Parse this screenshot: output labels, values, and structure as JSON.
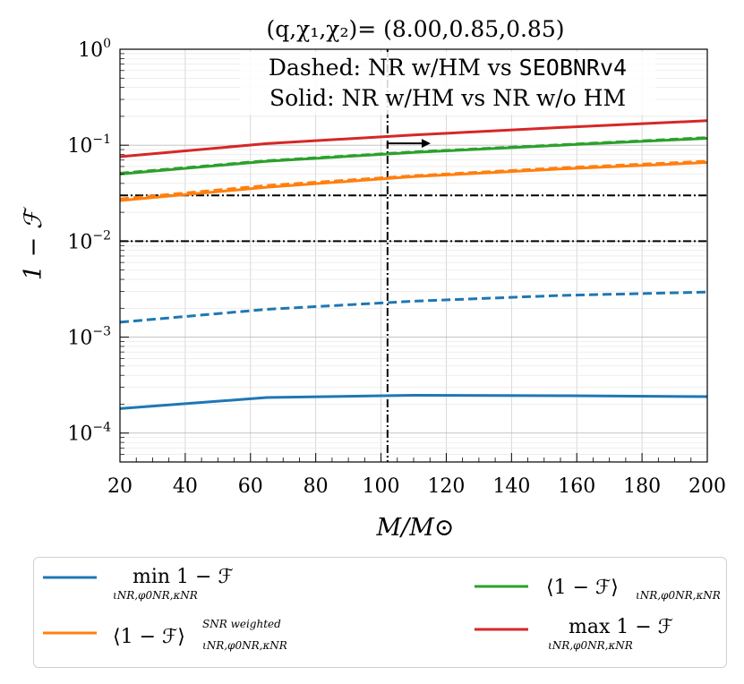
{
  "chart_data": {
    "type": "line",
    "title": "(q,χ₁,χ₂)= (8.00,0.85,0.85)",
    "annotations": {
      "line1_prefix": "Dashed: NR w/HM vs ",
      "line1_model": "SEOBNRv4",
      "line2": "Solid: NR w/HM vs NR w/o HM"
    },
    "xlabel": "M/M⊙",
    "ylabel": "1 − ℱ",
    "xlim": [
      20,
      200
    ],
    "ylim": [
      5e-05,
      1
    ],
    "yscale": "log",
    "grid": true,
    "x_ticks": [
      "20",
      "40",
      "60",
      "80",
      "100",
      "120",
      "140",
      "160",
      "180",
      "200"
    ],
    "y_ticks": [
      {
        "base": "10",
        "exp": "0",
        "value": 1
      },
      {
        "base": "10",
        "exp": "−1",
        "value": 0.1
      },
      {
        "base": "10",
        "exp": "−2",
        "value": 0.01
      },
      {
        "base": "10",
        "exp": "−3",
        "value": 0.001
      },
      {
        "base": "10",
        "exp": "−4",
        "value": 0.0001
      }
    ],
    "x": [
      20,
      65,
      110,
      155,
      200
    ],
    "series": [
      {
        "name": "min 1 − ℱ",
        "color": "#1f77b4",
        "style": "solid",
        "values": [
          0.00018,
          0.000235,
          0.000248,
          0.000245,
          0.00024
        ]
      },
      {
        "name": "min 1 − ℱ",
        "color": "#1f77b4",
        "style": "dashed",
        "values": [
          0.00143,
          0.00195,
          0.00237,
          0.00272,
          0.00295
        ]
      },
      {
        "name": "⟨1 − ℱ⟩ SNR weighted",
        "color": "#ff7f0e",
        "style": "solid",
        "values": [
          0.0265,
          0.0365,
          0.047,
          0.0565,
          0.066
        ]
      },
      {
        "name": "⟨1 − ℱ⟩ SNR weighted",
        "color": "#ff7f0e",
        "style": "dashed",
        "values": [
          0.0275,
          0.038,
          0.048,
          0.058,
          0.068
        ]
      },
      {
        "name": "⟨1 − ℱ⟩",
        "color": "#2ca02c",
        "style": "solid",
        "values": [
          0.05,
          0.068,
          0.084,
          0.1,
          0.118
        ]
      },
      {
        "name": "⟨1 − ℱ⟩",
        "color": "#2ca02c",
        "style": "dashed",
        "values": [
          0.051,
          0.069,
          0.085,
          0.101,
          0.12
        ]
      },
      {
        "name": "max 1 − ℱ",
        "color": "#d62728",
        "style": "solid",
        "values": [
          0.076,
          0.104,
          0.128,
          0.153,
          0.18
        ]
      }
    ],
    "reference_lines": {
      "horizontal": [
        0.03,
        0.01
      ],
      "vertical": 102,
      "arrow_from_x": 102,
      "arrow_to_x": 113,
      "arrow_y": 0.1
    },
    "legend": {
      "placement": "bottom",
      "items": [
        {
          "color": "#1f77b4",
          "main": "min 1 − ℱ",
          "sub": "ιNR,φ0NR,κNR"
        },
        {
          "color": "#ff7f0e",
          "main": "⟨1 − ℱ⟩",
          "sup": "SNR weighted",
          "sub": "ιNR,φ0NR,κNR"
        },
        {
          "color": "#2ca02c",
          "main": "⟨1 − ℱ⟩",
          "sub": "ιNR,φ0NR,κNR"
        },
        {
          "color": "#d62728",
          "main": "max 1 − ℱ",
          "sub": "ιNR,φ0NR,κNR"
        }
      ]
    }
  }
}
